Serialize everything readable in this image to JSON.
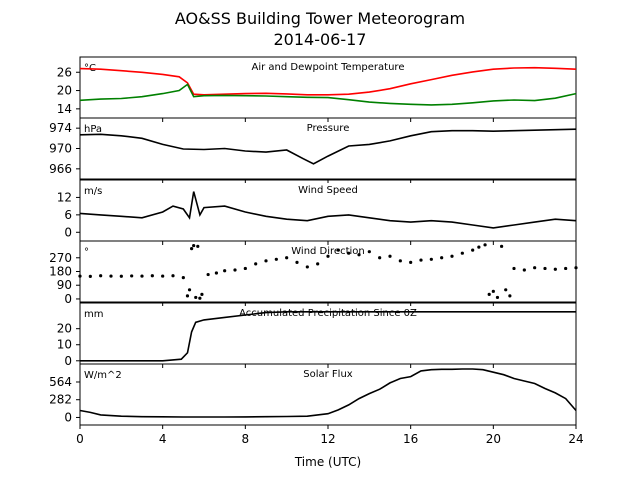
{
  "title_line1": "AO&SS Building Tower Meteorogram",
  "title_line2": "2014-06-17",
  "xlabel": "Time (UTC)",
  "x_ticks": [
    "0",
    "4",
    "8",
    "12",
    "16",
    "20",
    "24"
  ],
  "colors": {
    "temperature": "#ff0000",
    "dewpoint": "#008000",
    "default": "#000000"
  },
  "chart_data": [
    {
      "type": "line",
      "title": "Air and Dewpoint Temperature",
      "unit": "°C",
      "xlim": [
        0,
        24
      ],
      "ylim": [
        11,
        31
      ],
      "yticks": [
        14,
        20,
        26
      ],
      "ytick_labels": [
        "14",
        "20",
        "26"
      ],
      "series": [
        {
          "key": "temperature",
          "x": [
            0,
            1,
            2,
            3,
            4,
            4.8,
            5.2,
            5.5,
            6,
            7,
            8,
            9,
            10,
            11,
            12,
            13,
            14,
            15,
            16,
            17,
            18,
            19,
            20,
            21,
            22,
            23,
            24
          ],
          "values": [
            27.2,
            27.0,
            26.5,
            26.0,
            25.3,
            24.5,
            22.5,
            18.8,
            18.6,
            18.8,
            19.0,
            19.1,
            18.9,
            18.6,
            18.6,
            18.8,
            19.5,
            20.6,
            22.2,
            23.6,
            25.0,
            26.1,
            27.0,
            27.4,
            27.5,
            27.3,
            27.0
          ]
        },
        {
          "key": "dewpoint",
          "x": [
            0,
            1,
            2,
            3,
            4,
            4.8,
            5.2,
            5.5,
            6,
            7,
            8,
            9,
            10,
            11,
            12,
            13,
            14,
            15,
            16,
            17,
            18,
            19,
            20,
            21,
            22,
            23,
            24
          ],
          "values": [
            16.8,
            17.2,
            17.4,
            18.0,
            19.0,
            20.0,
            22.0,
            18.0,
            18.3,
            18.4,
            18.3,
            18.2,
            18.0,
            17.8,
            17.7,
            17.0,
            16.2,
            15.8,
            15.5,
            15.3,
            15.5,
            16.0,
            16.6,
            16.9,
            16.7,
            17.5,
            19.0
          ]
        }
      ]
    },
    {
      "type": "line",
      "title": "Pressure",
      "unit": "hPa",
      "xlim": [
        0,
        24
      ],
      "ylim": [
        964,
        976
      ],
      "yticks": [
        966,
        970,
        974
      ],
      "ytick_labels": [
        "966",
        "970",
        "974"
      ],
      "series": [
        {
          "key": "default",
          "x": [
            0,
            1,
            2,
            3,
            4,
            5,
            6,
            7,
            8,
            9,
            10,
            10.8,
            11.3,
            12,
            13,
            14,
            15,
            16,
            17,
            18,
            19,
            20,
            21,
            22,
            23,
            24
          ],
          "values": [
            972.7,
            972.8,
            972.5,
            972.0,
            970.8,
            969.9,
            969.8,
            970.0,
            969.5,
            969.3,
            969.7,
            968.0,
            967.0,
            968.5,
            970.5,
            970.8,
            971.5,
            972.5,
            973.3,
            973.5,
            973.5,
            973.4,
            973.5,
            973.6,
            973.7,
            973.8
          ]
        }
      ]
    },
    {
      "type": "line",
      "title": "Wind Speed",
      "unit": "m/s",
      "xlim": [
        0,
        24
      ],
      "ylim": [
        -3,
        18
      ],
      "yticks": [
        0,
        6,
        12
      ],
      "ytick_labels": [
        "0",
        "6",
        "12"
      ],
      "series": [
        {
          "key": "default",
          "x": [
            0,
            1,
            2,
            3,
            4,
            4.5,
            5,
            5.3,
            5.5,
            5.8,
            6,
            7,
            8,
            9,
            10,
            11,
            12,
            13,
            14,
            15,
            16,
            17,
            18,
            19,
            20,
            21,
            22,
            23,
            24
          ],
          "values": [
            6.5,
            6.0,
            5.5,
            5.0,
            7.0,
            9.0,
            8.0,
            5.0,
            14.0,
            6.0,
            8.5,
            9.0,
            7.0,
            5.5,
            4.5,
            4.0,
            5.5,
            6.0,
            5.0,
            4.0,
            3.5,
            4.0,
            3.5,
            2.5,
            1.5,
            2.5,
            3.5,
            4.5,
            4.0
          ]
        }
      ]
    },
    {
      "type": "scatter",
      "title": "Wind Direction",
      "unit": "°",
      "xlim": [
        0,
        24
      ],
      "ylim": [
        -20,
        380
      ],
      "yticks": [
        0,
        90,
        180,
        270
      ],
      "ytick_labels": [
        "0",
        "90",
        "180",
        "270"
      ],
      "series": [
        {
          "key": "default",
          "x": [
            0,
            0.5,
            1,
            1.5,
            2,
            2.5,
            3,
            3.5,
            4,
            4.5,
            5,
            5.2,
            5.3,
            5.4,
            5.5,
            5.6,
            5.7,
            5.8,
            5.9,
            6.2,
            6.6,
            7,
            7.5,
            8,
            8.5,
            9,
            9.5,
            10,
            10.5,
            11,
            11.5,
            12,
            12.5,
            13,
            13.5,
            14,
            14.5,
            15,
            15.5,
            16,
            16.5,
            17,
            17.5,
            18,
            18.5,
            19,
            19.3,
            19.6,
            19.8,
            20,
            20.2,
            20.4,
            20.6,
            20.8,
            21,
            21.5,
            22,
            22.5,
            23,
            23.5,
            24
          ],
          "values": [
            150,
            148,
            152,
            150,
            149,
            151,
            150,
            152,
            150,
            152,
            140,
            20,
            60,
            330,
            350,
            10,
            345,
            5,
            30,
            160,
            170,
            185,
            190,
            200,
            230,
            250,
            260,
            270,
            240,
            210,
            230,
            280,
            320,
            300,
            290,
            310,
            270,
            280,
            250,
            240,
            255,
            260,
            270,
            280,
            300,
            320,
            340,
            355,
            30,
            50,
            10,
            345,
            60,
            20,
            200,
            190,
            205,
            200,
            195,
            200,
            205
          ]
        }
      ]
    },
    {
      "type": "line",
      "title": "Accumulated Precipitation Since 0Z",
      "unit": "mm",
      "xlim": [
        0,
        24
      ],
      "ylim": [
        -2,
        36
      ],
      "yticks": [
        0,
        10,
        20
      ],
      "ytick_labels": [
        "0",
        "10",
        "20"
      ],
      "series": [
        {
          "key": "default",
          "x": [
            0,
            2,
            4,
            4.9,
            5.2,
            5.4,
            5.6,
            6,
            7,
            8,
            9,
            10,
            24
          ],
          "values": [
            0,
            0,
            0,
            1,
            5,
            18,
            24,
            25.5,
            27,
            28.5,
            30,
            30.5,
            30.5
          ]
        }
      ]
    },
    {
      "type": "line",
      "title": "Solar Flux",
      "unit": "W/m^2",
      "xlim": [
        0,
        24
      ],
      "ylim": [
        -120,
        850
      ],
      "yticks": [
        0,
        282,
        564
      ],
      "ytick_labels": [
        "0",
        "282",
        "564"
      ],
      "series": [
        {
          "key": "default",
          "x": [
            0,
            0.5,
            1,
            2,
            3,
            4,
            5,
            6,
            7,
            8,
            9,
            10,
            11,
            12,
            12.5,
            13,
            13.5,
            14,
            14.5,
            15,
            15.5,
            16,
            16.5,
            17,
            17.5,
            18,
            18.5,
            19,
            19.5,
            20,
            20.5,
            21,
            21.5,
            22,
            22.5,
            23,
            23.5,
            24
          ],
          "values": [
            110,
            80,
            40,
            20,
            12,
            10,
            8,
            8,
            8,
            9,
            12,
            15,
            20,
            60,
            120,
            200,
            300,
            380,
            450,
            550,
            620,
            650,
            740,
            760,
            765,
            765,
            770,
            770,
            760,
            720,
            680,
            620,
            580,
            540,
            460,
            390,
            300,
            110
          ]
        }
      ]
    }
  ]
}
